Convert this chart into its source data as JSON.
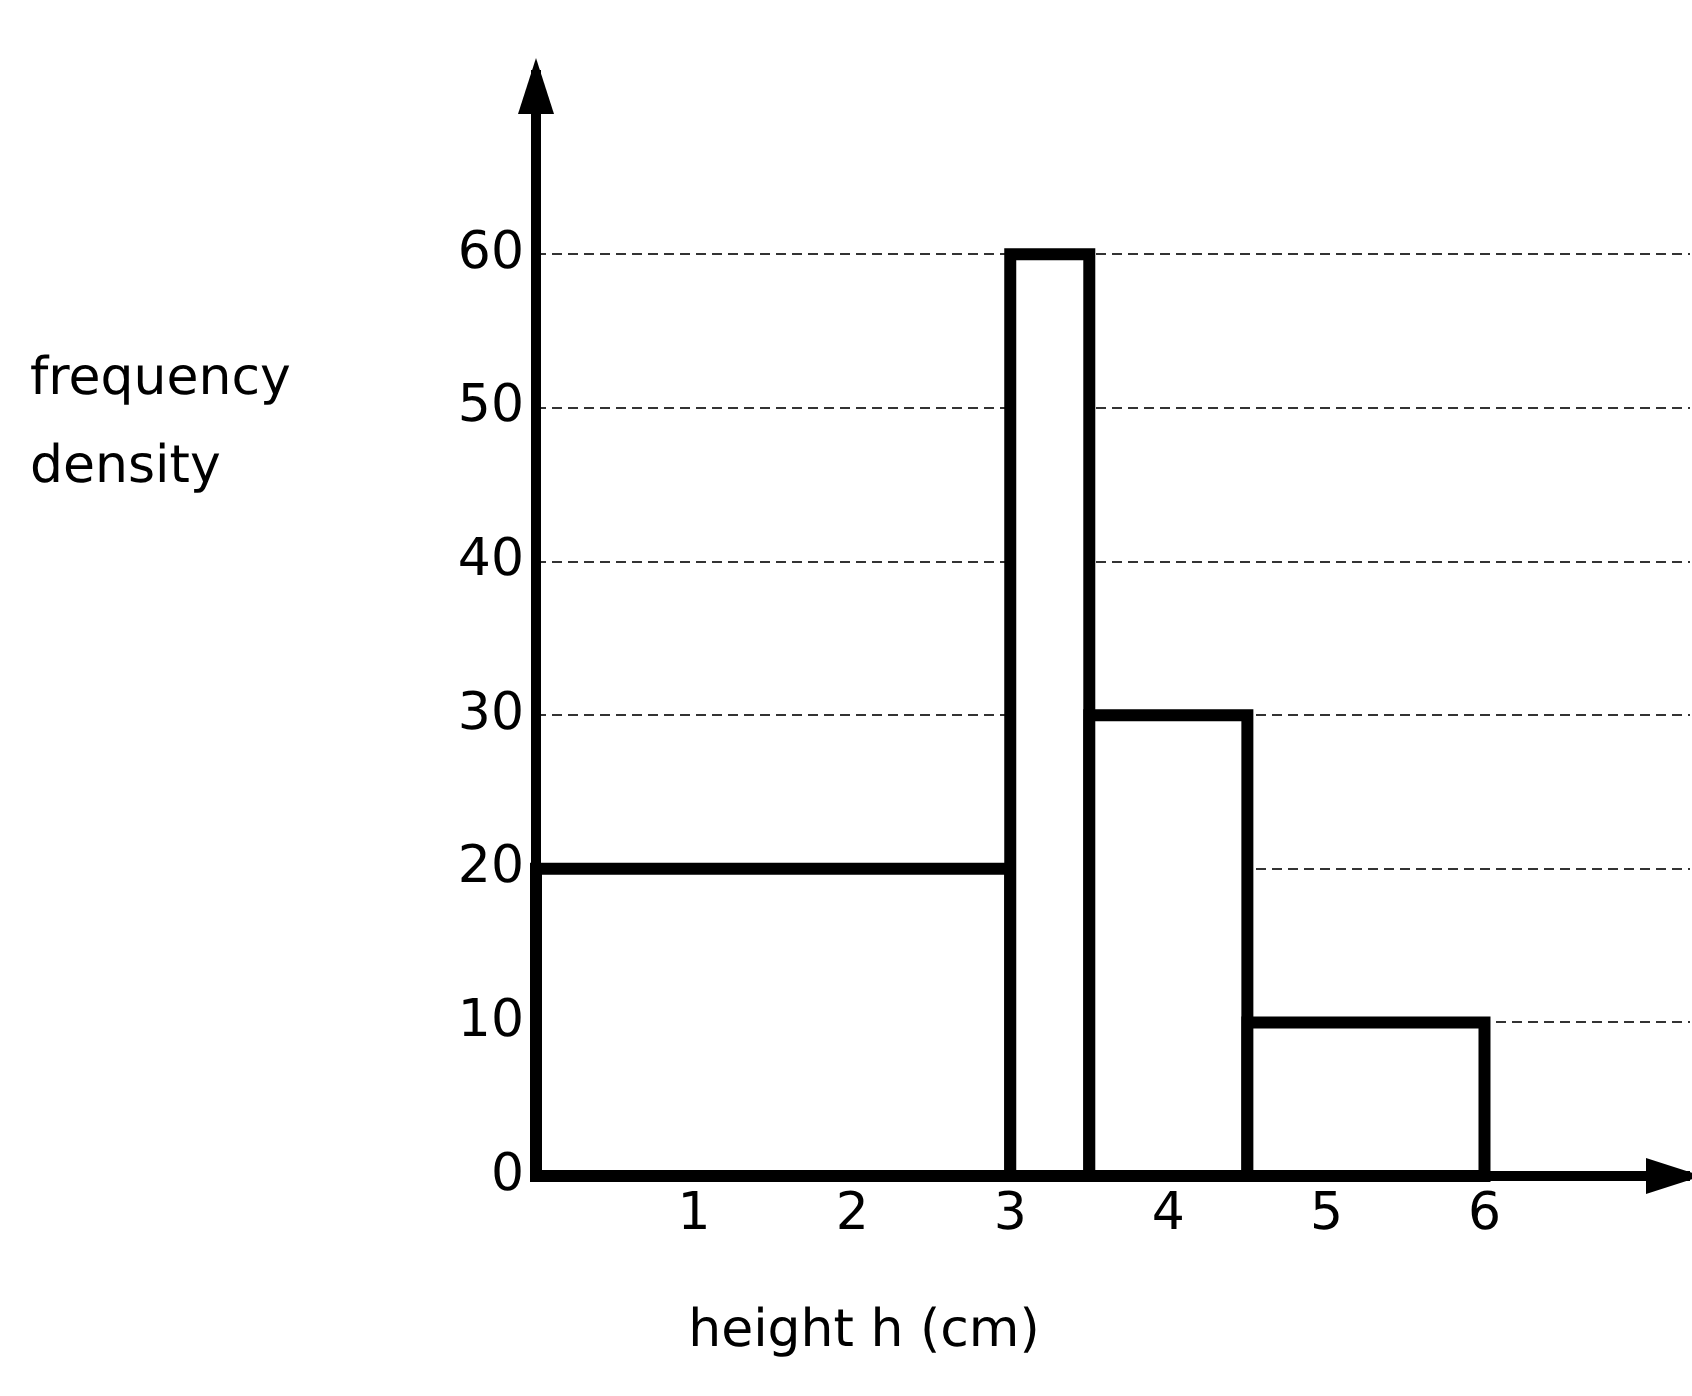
{
  "chart_data": {
    "type": "histogram",
    "xlabel": "height h (cm)",
    "ylabel": "frequency density",
    "bins": [
      0,
      3,
      3.5,
      4.5,
      6
    ],
    "values": [
      20,
      60,
      30,
      10
    ],
    "color": "#000000",
    "xlim": [
      0,
      7.3
    ],
    "xticks": [
      1,
      2,
      3,
      4,
      5,
      6
    ],
    "ylim": [
      0,
      72
    ],
    "yticks": [
      0,
      10,
      20,
      30,
      40,
      50,
      60
    ],
    "grid": "y",
    "legend": false
  }
}
